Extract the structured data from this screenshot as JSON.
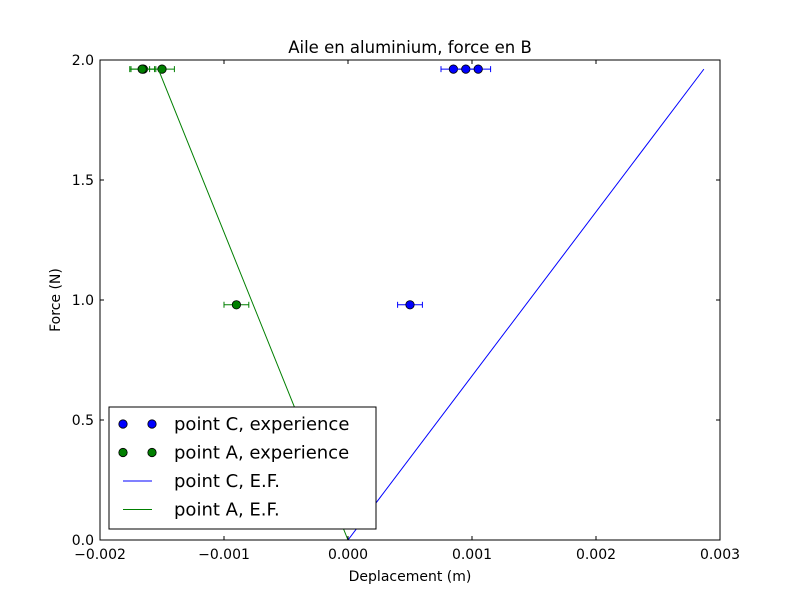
{
  "chart_data": {
    "type": "scatter",
    "title": "Aile en aluminium, force en B",
    "xlabel": "Deplacement (m)",
    "ylabel": "Force (N)",
    "xlim": [
      -0.002,
      0.003
    ],
    "ylim": [
      0.0,
      2.0
    ],
    "x_ticks": [
      -0.002,
      -0.001,
      0.0,
      0.001,
      0.002,
      0.003
    ],
    "x_tick_labels": [
      "−0.002",
      "−0.001",
      "0.000",
      "0.001",
      "0.002",
      "0.003"
    ],
    "y_ticks": [
      0.0,
      0.5,
      1.0,
      1.5,
      2.0
    ],
    "y_tick_labels": [
      "0.0",
      "0.5",
      "1.0",
      "1.5",
      "2.0"
    ],
    "grid": false,
    "legend_position": "bottom-left",
    "series": [
      {
        "name": "point C, experience",
        "kind": "markers",
        "color": "#0000ff",
        "points": [
          {
            "x": 0.0005,
            "y": 0.98,
            "xerr": 0.0001
          },
          {
            "x": 0.00085,
            "y": 1.962,
            "xerr": 0.0001
          },
          {
            "x": 0.00095,
            "y": 1.962,
            "xerr": 0.0001
          },
          {
            "x": 0.00105,
            "y": 1.962,
            "xerr": 0.0001
          }
        ]
      },
      {
        "name": "point A, experience",
        "kind": "markers",
        "color": "#007f00",
        "points": [
          {
            "x": -0.0009,
            "y": 0.98,
            "xerr": 0.0001
          },
          {
            "x": -0.00165,
            "y": 1.962,
            "xerr": 0.0001
          },
          {
            "x": -0.00166,
            "y": 1.962,
            "xerr": 0.0001
          },
          {
            "x": -0.0015,
            "y": 1.962,
            "xerr": 0.0001
          }
        ]
      },
      {
        "name": "point C, E.F.",
        "kind": "line",
        "color": "#0000ff",
        "points": [
          {
            "x": 0.0,
            "y": 0.0
          },
          {
            "x": 0.00287,
            "y": 1.962
          }
        ]
      },
      {
        "name": "point A, E.F.",
        "kind": "line",
        "color": "#007f00",
        "points": [
          {
            "x": 0.0,
            "y": 0.0
          },
          {
            "x": -0.00153,
            "y": 1.962
          }
        ]
      }
    ]
  }
}
